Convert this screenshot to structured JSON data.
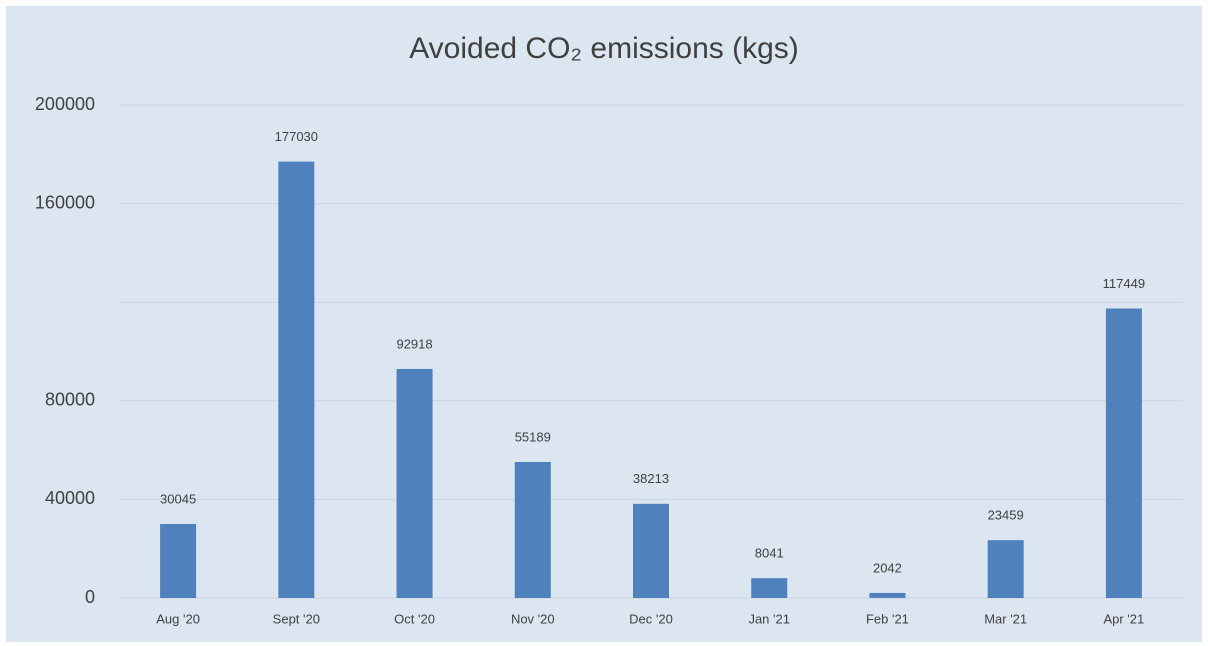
{
  "chart_data": {
    "type": "bar",
    "title": "Avoided CO₂ emissions (kgs)",
    "categories": [
      "Aug '20",
      "Sept '20",
      "Oct '20",
      "Nov '20",
      "Dec '20",
      "Jan '21",
      "Feb '21",
      "Mar '21",
      "Apr '21"
    ],
    "values": [
      30045,
      177030,
      92918,
      55189,
      38213,
      8041,
      2042,
      23459,
      117449
    ],
    "color": "#4f81bd",
    "ylim": [
      0,
      200000
    ],
    "yticks": [
      0,
      40000,
      80000,
      {
        "value": 120000,
        "label": null
      },
      160000,
      200000
    ],
    "grid": true
  }
}
